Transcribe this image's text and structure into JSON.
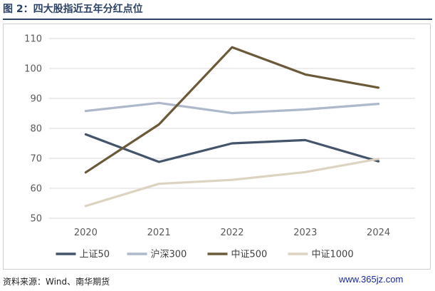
{
  "figure_title": "图 2：四大股指近五年分红点位",
  "source_text": "资料来源：Wind、南华期货",
  "watermark_text": "www.365jz.com",
  "chart_data": {
    "type": "line",
    "title": "",
    "xlabel": "",
    "ylabel": "",
    "categories": [
      "2020",
      "2021",
      "2022",
      "2023",
      "2024"
    ],
    "ylim": [
      50,
      110
    ],
    "yticks": [
      50,
      60,
      70,
      80,
      90,
      100,
      110
    ],
    "grid": true,
    "legend_position": "bottom",
    "series": [
      {
        "name": "上证50",
        "color": "#44546a",
        "values": [
          78,
          68.8,
          75,
          76.1,
          69
        ]
      },
      {
        "name": "沪深300",
        "color": "#adb9ca",
        "values": [
          85.8,
          88.5,
          85.1,
          86.3,
          88.2
        ]
      },
      {
        "name": "中证500",
        "color": "#6b5a3a",
        "values": [
          65.3,
          81.3,
          107.1,
          98,
          93.6
        ]
      },
      {
        "name": "中证1000",
        "color": "#ddd3c1",
        "values": [
          54.1,
          61.5,
          62.8,
          65.4,
          69.8
        ]
      }
    ]
  }
}
